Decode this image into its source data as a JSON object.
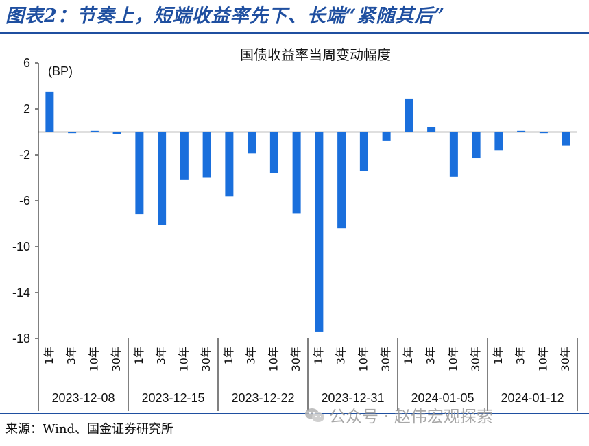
{
  "figure": {
    "title": "图表2：节奏上，短端收益率先下、长端“紧随其后”",
    "source": "来源：Wind、国金证券研究所",
    "watermark": "公众号 · 赵伟宏观探索",
    "accent_color": "#1f4fa0"
  },
  "chart_data": {
    "type": "bar",
    "title": "国债收益率当周变动幅度",
    "unit_label": "(BP)",
    "ylim": [
      -18,
      6
    ],
    "yticks": [
      6,
      2,
      -2,
      -6,
      -10,
      -14,
      -18
    ],
    "bar_color": "#1a6fdc",
    "groups": [
      "2023-12-08",
      "2023-12-15",
      "2023-12-22",
      "2023-12-31",
      "2024-01-05",
      "2024-01-12"
    ],
    "tenors": [
      "1年",
      "3年",
      "10年",
      "30年"
    ],
    "series": [
      {
        "group": "2023-12-08",
        "values": [
          3.5,
          -0.1,
          0.1,
          -0.2
        ]
      },
      {
        "group": "2023-12-15",
        "values": [
          -7.2,
          -8.1,
          -4.2,
          -4.0
        ]
      },
      {
        "group": "2023-12-22",
        "values": [
          -5.6,
          -1.9,
          -3.6,
          -7.1
        ]
      },
      {
        "group": "2023-12-31",
        "values": [
          -17.4,
          -8.4,
          -3.4,
          -0.8
        ]
      },
      {
        "group": "2024-01-05",
        "values": [
          2.9,
          0.4,
          -3.9,
          -2.3
        ]
      },
      {
        "group": "2024-01-12",
        "values": [
          -1.6,
          0.1,
          -0.1,
          -1.2
        ]
      }
    ]
  }
}
